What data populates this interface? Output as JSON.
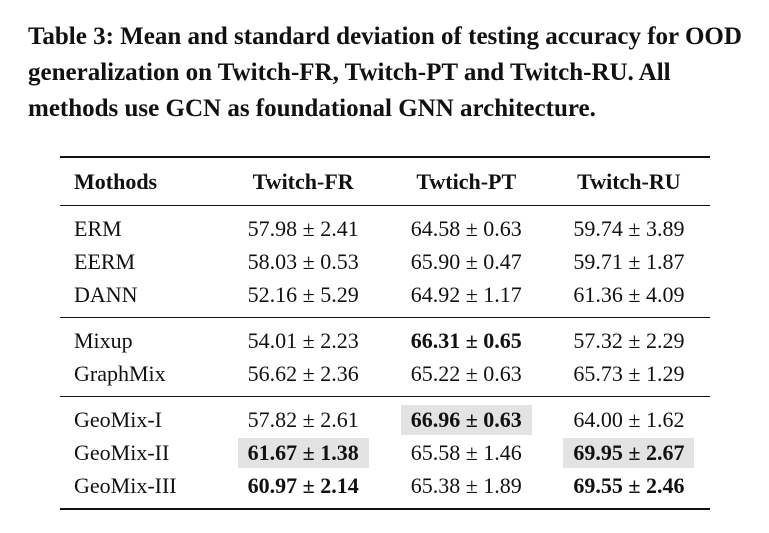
{
  "caption": "Table 3: Mean and standard deviation of testing accuracy for OOD generalization on Twitch-FR, Twitch-PT and Twitch-RU. All methods use GCN as foundational GNN architecture.",
  "columns": [
    "Mothods",
    "Twitch-FR",
    "Twtich-PT",
    "Twitch-RU"
  ],
  "groups": [
    {
      "rows": [
        {
          "method": "ERM",
          "fr": "57.98 ± 2.41",
          "pt": "64.58 ± 0.63",
          "ru": "59.74 ± 3.89"
        },
        {
          "method": "EERM",
          "fr": "58.03 ± 0.53",
          "pt": "65.90 ± 0.47",
          "ru": "59.71 ± 1.87"
        },
        {
          "method": "DANN",
          "fr": "52.16 ± 5.29",
          "pt": "64.92 ± 1.17",
          "ru": "61.36 ± 4.09"
        }
      ]
    },
    {
      "rows": [
        {
          "method": "Mixup",
          "fr": "54.01 ± 2.23",
          "pt": "66.31 ± 0.65",
          "ru": "57.32 ± 2.29"
        },
        {
          "method": "GraphMix",
          "fr": "56.62 ± 2.36",
          "pt": "65.22 ± 0.63",
          "ru": "65.73 ± 1.29"
        }
      ]
    },
    {
      "rows": [
        {
          "method": "GeoMix-I",
          "fr": "57.82 ± 2.61",
          "pt": "66.96 ± 0.63",
          "ru": "64.00 ± 1.62"
        },
        {
          "method": "GeoMix-II",
          "fr": "61.67 ± 1.38",
          "pt": "65.58 ± 1.46",
          "ru": "69.95 ± 2.67"
        },
        {
          "method": "GeoMix-III",
          "fr": "60.97 ± 2.14",
          "pt": "65.38 ± 1.89",
          "ru": "69.55 ± 2.46"
        }
      ]
    }
  ]
}
